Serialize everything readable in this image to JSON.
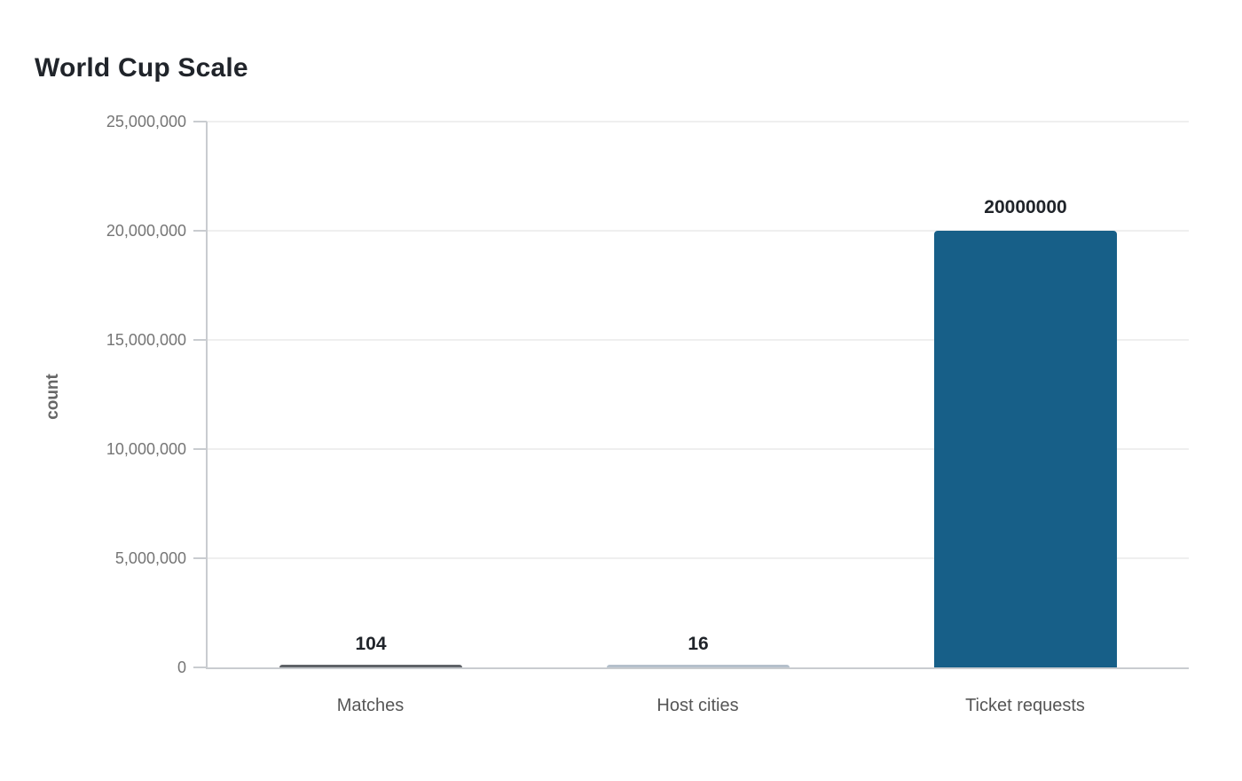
{
  "page_title": "World Cup Scale",
  "chart_data": {
    "type": "bar",
    "title": "World Cup Scale",
    "categories": [
      "Matches",
      "Host cities",
      "Ticket requests"
    ],
    "values": [
      104,
      16,
      20000000
    ],
    "value_labels": [
      "104",
      "16",
      "20000000"
    ],
    "xlabel": "",
    "ylabel": "count",
    "ylim": [
      0,
      25000000
    ],
    "yticks": [
      0,
      5000000,
      10000000,
      15000000,
      20000000,
      25000000
    ],
    "ytick_labels": [
      "0",
      "5,000,000",
      "10,000,000",
      "15,000,000",
      "20,000,000",
      "25,000,000"
    ],
    "grid": true,
    "legend": false,
    "bar_color": "#175f88",
    "bar_render_colors": [
      "#5f6368",
      "#b4c0cb",
      "#175f88"
    ]
  },
  "colors": {
    "background": "#ffffff",
    "title": "#20242a",
    "axis_line": "#c9ccd0",
    "gridline": "#efefef",
    "tick_label": "#757575",
    "category_label": "#565656",
    "value_label": "#20242a",
    "ylabel": "#666666"
  }
}
